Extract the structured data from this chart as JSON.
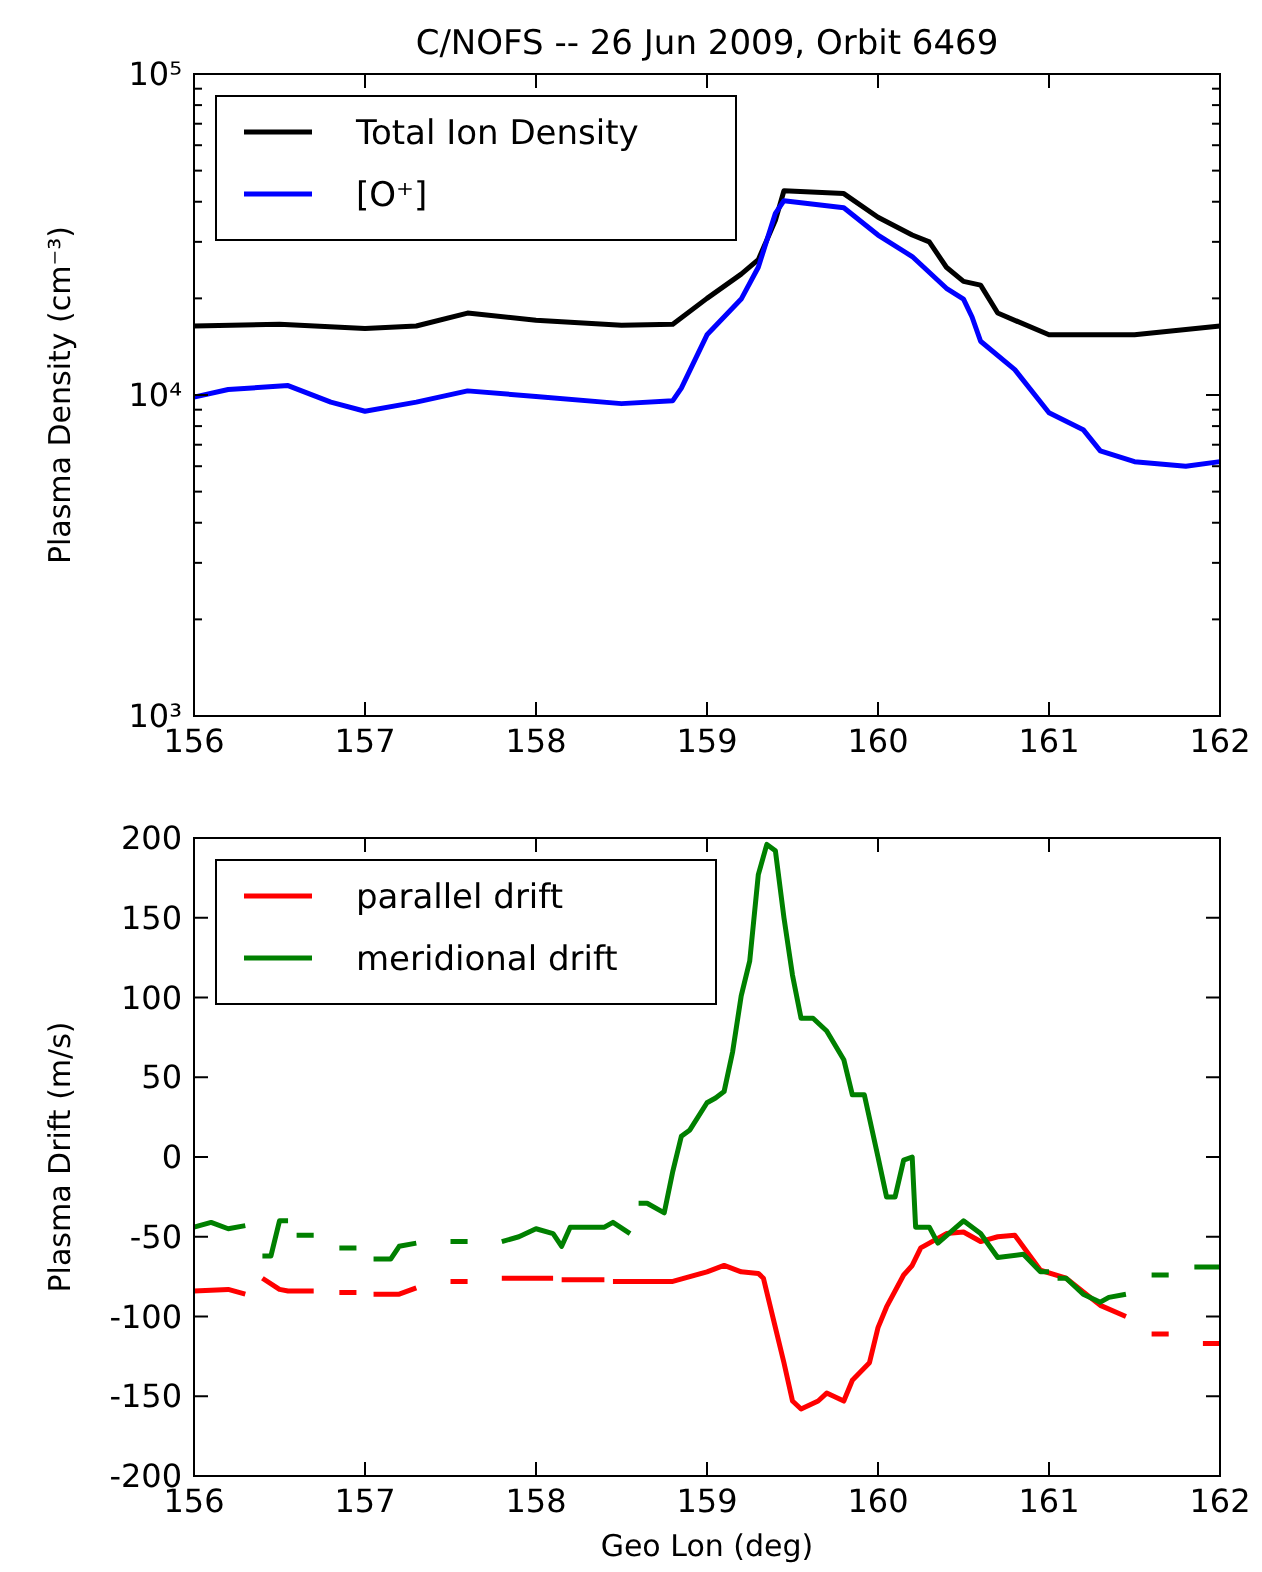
{
  "chart_data": [
    {
      "type": "line",
      "title": "C/NOFS -- 26 Jun 2009, Orbit 6469",
      "ylabel": "Plasma Density (cm⁻³)",
      "log": "y",
      "xlim": [
        156,
        162
      ],
      "xticks": [
        156,
        157,
        158,
        159,
        160,
        161,
        162
      ],
      "ylim": [
        1000,
        100000
      ],
      "yticks": [
        {
          "value": 1000,
          "label": "10³"
        },
        {
          "value": 10000,
          "label": "10⁴"
        },
        {
          "value": 100000,
          "label": "10⁵"
        }
      ],
      "grid": false,
      "legend": "top left",
      "series": [
        {
          "name": "Total Ion Density",
          "color": "#000000",
          "x": [
            156,
            156.5,
            157,
            157.3,
            157.6,
            158,
            158.5,
            158.8,
            159,
            159.2,
            159.3,
            159.4,
            159.45,
            159.8,
            160,
            160.2,
            160.3,
            160.4,
            160.5,
            160.6,
            160.7,
            161,
            161.5,
            162
          ],
          "values": [
            16400,
            16600,
            16100,
            16400,
            18000,
            17100,
            16500,
            16600,
            20000,
            23800,
            26400,
            35000,
            43300,
            42400,
            35800,
            31500,
            30000,
            25000,
            22600,
            22000,
            18000,
            15400,
            15400,
            16400
          ]
        },
        {
          "name": "[O⁺]",
          "color": "#0000ff",
          "x": [
            156,
            156.2,
            156.55,
            156.8,
            157,
            157.3,
            157.6,
            158,
            158.5,
            158.8,
            158.85,
            159,
            159.2,
            159.3,
            159.4,
            159.45,
            159.8,
            160,
            160.2,
            160.4,
            160.5,
            160.55,
            160.6,
            160.8,
            161,
            161.2,
            161.3,
            161.5,
            161.8,
            162
          ],
          "values": [
            9850,
            10400,
            10700,
            9500,
            8900,
            9500,
            10300,
            9900,
            9400,
            9600,
            10500,
            15400,
            19900,
            25000,
            36800,
            40300,
            38300,
            31500,
            27000,
            21500,
            19900,
            17500,
            14700,
            12000,
            8800,
            7800,
            6700,
            6200,
            6000,
            6200
          ]
        }
      ]
    },
    {
      "type": "line",
      "xlabel": "Geo Lon (deg)",
      "ylabel": "Plasma Drift (m/s)",
      "xlim": [
        156,
        162
      ],
      "xticks": [
        156,
        157,
        158,
        159,
        160,
        161,
        162
      ],
      "ylim": [
        -200,
        200
      ],
      "yticks": [
        -200,
        -150,
        -100,
        -50,
        0,
        50,
        100,
        150,
        200
      ],
      "grid": false,
      "legend": "top left",
      "series": [
        {
          "name": "parallel drift",
          "color": "#ff0000",
          "x": [
            156,
            156.2,
            156.3,
            156.35,
            156.4,
            156.5,
            156.55,
            156.7,
            156.78,
            156.85,
            156.95,
            157,
            157.05,
            157.2,
            157.3,
            157.4,
            157.5,
            157.6,
            157.7,
            157.8,
            158.1,
            158.12,
            158.15,
            158.4,
            158.42,
            158.45,
            158.55,
            158.6,
            158.8,
            159,
            159.1,
            159.2,
            159.3,
            159.33,
            159.4,
            159.45,
            159.5,
            159.55,
            159.65,
            159.7,
            159.8,
            159.85,
            159.95,
            160,
            160.05,
            160.15,
            160.2,
            160.25,
            160.4,
            160.5,
            160.6,
            160.7,
            160.8,
            160.95,
            161.1,
            161.3,
            161.45,
            161.52,
            161.6,
            161.7,
            161.8,
            161.9,
            162
          ],
          "values": [
            -84,
            -83,
            -86,
            null,
            -76,
            -83,
            -84,
            -84,
            null,
            -85,
            -85,
            null,
            -86,
            -86,
            -82,
            null,
            -78,
            -78,
            null,
            -76,
            -76,
            null,
            -77,
            -77,
            null,
            -78,
            -78,
            -78,
            -78,
            -72,
            -68,
            -72,
            -73,
            -76,
            -107,
            -129,
            -153,
            -158,
            -153,
            -148,
            -153,
            -140,
            -129,
            -107,
            -94,
            -74,
            -68,
            -57,
            -48,
            -47,
            -53,
            -50,
            -49,
            -71,
            -76,
            -93,
            -100,
            null,
            -111,
            -111,
            null,
            -117,
            -117
          ]
        },
        {
          "name": "meridional drift",
          "color": "#008000",
          "x": [
            156,
            156.1,
            156.2,
            156.3,
            156.35,
            156.4,
            156.45,
            156.5,
            156.55,
            156.58,
            156.6,
            156.7,
            156.78,
            156.85,
            156.95,
            157,
            157.05,
            157.15,
            157.2,
            157.3,
            157.4,
            157.5,
            157.6,
            157.7,
            157.8,
            157.9,
            158,
            158.1,
            158.15,
            158.2,
            158.4,
            158.45,
            158.55,
            158.58,
            158.6,
            158.65,
            158.75,
            158.8,
            158.85,
            158.9,
            159,
            159.05,
            159.1,
            159.15,
            159.2,
            159.25,
            159.3,
            159.35,
            159.4,
            159.45,
            159.5,
            159.55,
            159.62,
            159.7,
            159.8,
            159.85,
            159.92,
            160,
            160.05,
            160.1,
            160.15,
            160.2,
            160.22,
            160.3,
            160.35,
            160.5,
            160.6,
            160.7,
            160.85,
            160.95,
            161,
            161.02,
            161.05,
            161.1,
            161.2,
            161.3,
            161.35,
            161.45,
            161.52,
            161.6,
            161.7,
            161.78,
            161.85,
            162
          ],
          "values": [
            -44,
            -41,
            -45,
            -43,
            null,
            -62,
            -62,
            -40,
            -40,
            null,
            -49,
            -49,
            null,
            -57,
            -57,
            null,
            -64,
            -64,
            -56,
            -54,
            null,
            -53,
            -53,
            null,
            -53,
            -50,
            -45,
            -48,
            -56,
            -44,
            -44,
            -41,
            -48,
            null,
            -29,
            -29,
            -35,
            -9,
            13,
            17,
            34,
            37,
            41,
            66,
            101,
            123,
            177,
            196,
            192,
            150,
            114,
            87,
            87,
            79,
            61,
            39,
            39,
            0,
            -25,
            -25,
            -2,
            0,
            -44,
            -44,
            -54,
            -40,
            -48,
            -63,
            -61,
            -72,
            -72,
            null,
            -76,
            -76,
            -86,
            -91,
            -88,
            -86,
            null,
            -74,
            -74,
            null,
            -69,
            -69
          ]
        }
      ]
    }
  ]
}
